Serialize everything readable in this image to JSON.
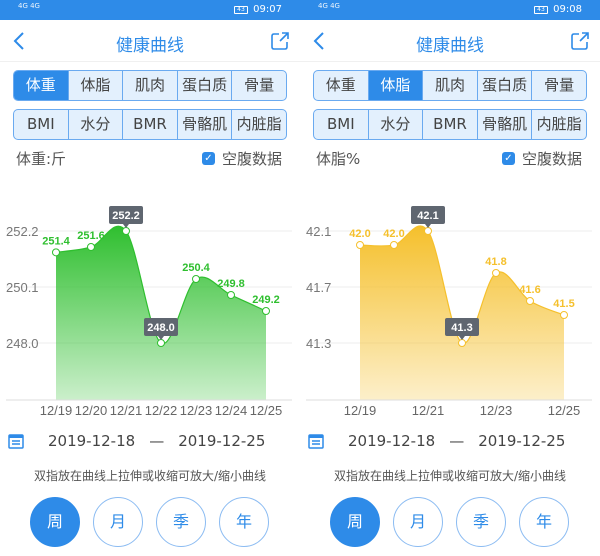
{
  "colors": {
    "accent": "#2e8be8",
    "weight": "#2fbf2f",
    "fat": "#f5c02c",
    "tooltip": "#5f6670"
  },
  "panels": [
    {
      "status": {
        "signal": "4G 4G",
        "time": "09:07",
        "battery": "43"
      },
      "header": {
        "title": "健康曲线",
        "back_icon": "chevron-left-icon",
        "share_icon": "share-icon"
      },
      "tabs_row1": [
        {
          "label": "体重",
          "active": true
        },
        {
          "label": "体脂"
        },
        {
          "label": "肌肉"
        },
        {
          "label": "蛋白质"
        },
        {
          "label": "骨量"
        }
      ],
      "tabs_row2": [
        {
          "label": "BMI"
        },
        {
          "label": "水分"
        },
        {
          "label": "BMR"
        },
        {
          "label": "骨骼肌"
        },
        {
          "label": "内脏脂"
        }
      ],
      "metric_label": "体重:斤",
      "fasting_checkbox": {
        "label": "空腹数据",
        "checked": true
      },
      "date_range": {
        "start": "2019-12-18",
        "separator": "—",
        "end": "2019-12-25"
      },
      "hint": "双指放在曲线上拉伸或收缩可放大/缩小曲线",
      "periods": [
        {
          "label": "周",
          "active": true
        },
        {
          "label": "月"
        },
        {
          "label": "季"
        },
        {
          "label": "年"
        }
      ],
      "chart_data": {
        "type": "area",
        "color": "#2fbf2f",
        "x": [
          "12/19",
          "12/20",
          "12/21",
          "12/22",
          "12/23",
          "12/24",
          "12/25"
        ],
        "x_tick_labels": [
          "12/19",
          "12/20",
          "12/21",
          "12/22",
          "12/23",
          "12/24",
          "12/25"
        ],
        "values": [
          251.4,
          251.6,
          252.2,
          248.0,
          250.4,
          249.8,
          249.2
        ],
        "y_ticks": [
          "252.2",
          "250.1",
          "248.0"
        ],
        "ylim": [
          248.0,
          252.2
        ],
        "max_label": "252.2",
        "min_label": "248.0",
        "point_labels": [
          "251.4",
          "251.6",
          "",
          "",
          "250.4",
          "249.8",
          "249.2"
        ],
        "grid": true
      }
    },
    {
      "status": {
        "signal": "4G 4G",
        "time": "09:08",
        "battery": "43"
      },
      "header": {
        "title": "健康曲线",
        "back_icon": "chevron-left-icon",
        "share_icon": "share-icon"
      },
      "tabs_row1": [
        {
          "label": "体重"
        },
        {
          "label": "体脂",
          "active": true
        },
        {
          "label": "肌肉"
        },
        {
          "label": "蛋白质"
        },
        {
          "label": "骨量"
        }
      ],
      "tabs_row2": [
        {
          "label": "BMI"
        },
        {
          "label": "水分"
        },
        {
          "label": "BMR"
        },
        {
          "label": "骨骼肌"
        },
        {
          "label": "内脏脂"
        }
      ],
      "metric_label": "体脂%",
      "fasting_checkbox": {
        "label": "空腹数据",
        "checked": true
      },
      "date_range": {
        "start": "2019-12-18",
        "separator": "—",
        "end": "2019-12-25"
      },
      "hint": "双指放在曲线上拉伸或收缩可放大/缩小曲线",
      "periods": [
        {
          "label": "周",
          "active": true
        },
        {
          "label": "月"
        },
        {
          "label": "季"
        },
        {
          "label": "年"
        }
      ],
      "chart_data": {
        "type": "area",
        "color": "#f5c02c",
        "x": [
          "12/19",
          "12/20",
          "12/21",
          "12/22",
          "12/23",
          "12/24",
          "12/25"
        ],
        "x_tick_labels": [
          "12/19",
          "",
          "12/21",
          "",
          "12/23",
          "",
          "12/25"
        ],
        "values": [
          42.0,
          42.0,
          42.1,
          41.3,
          41.8,
          41.6,
          41.5
        ],
        "y_ticks": [
          "42.1",
          "41.7",
          "41.3"
        ],
        "ylim": [
          41.3,
          42.1
        ],
        "max_label": "42.1",
        "min_label": "41.3",
        "point_labels": [
          "42.0",
          "42.0",
          "",
          "",
          "41.8",
          "41.6",
          "41.5"
        ],
        "grid": true
      }
    }
  ]
}
